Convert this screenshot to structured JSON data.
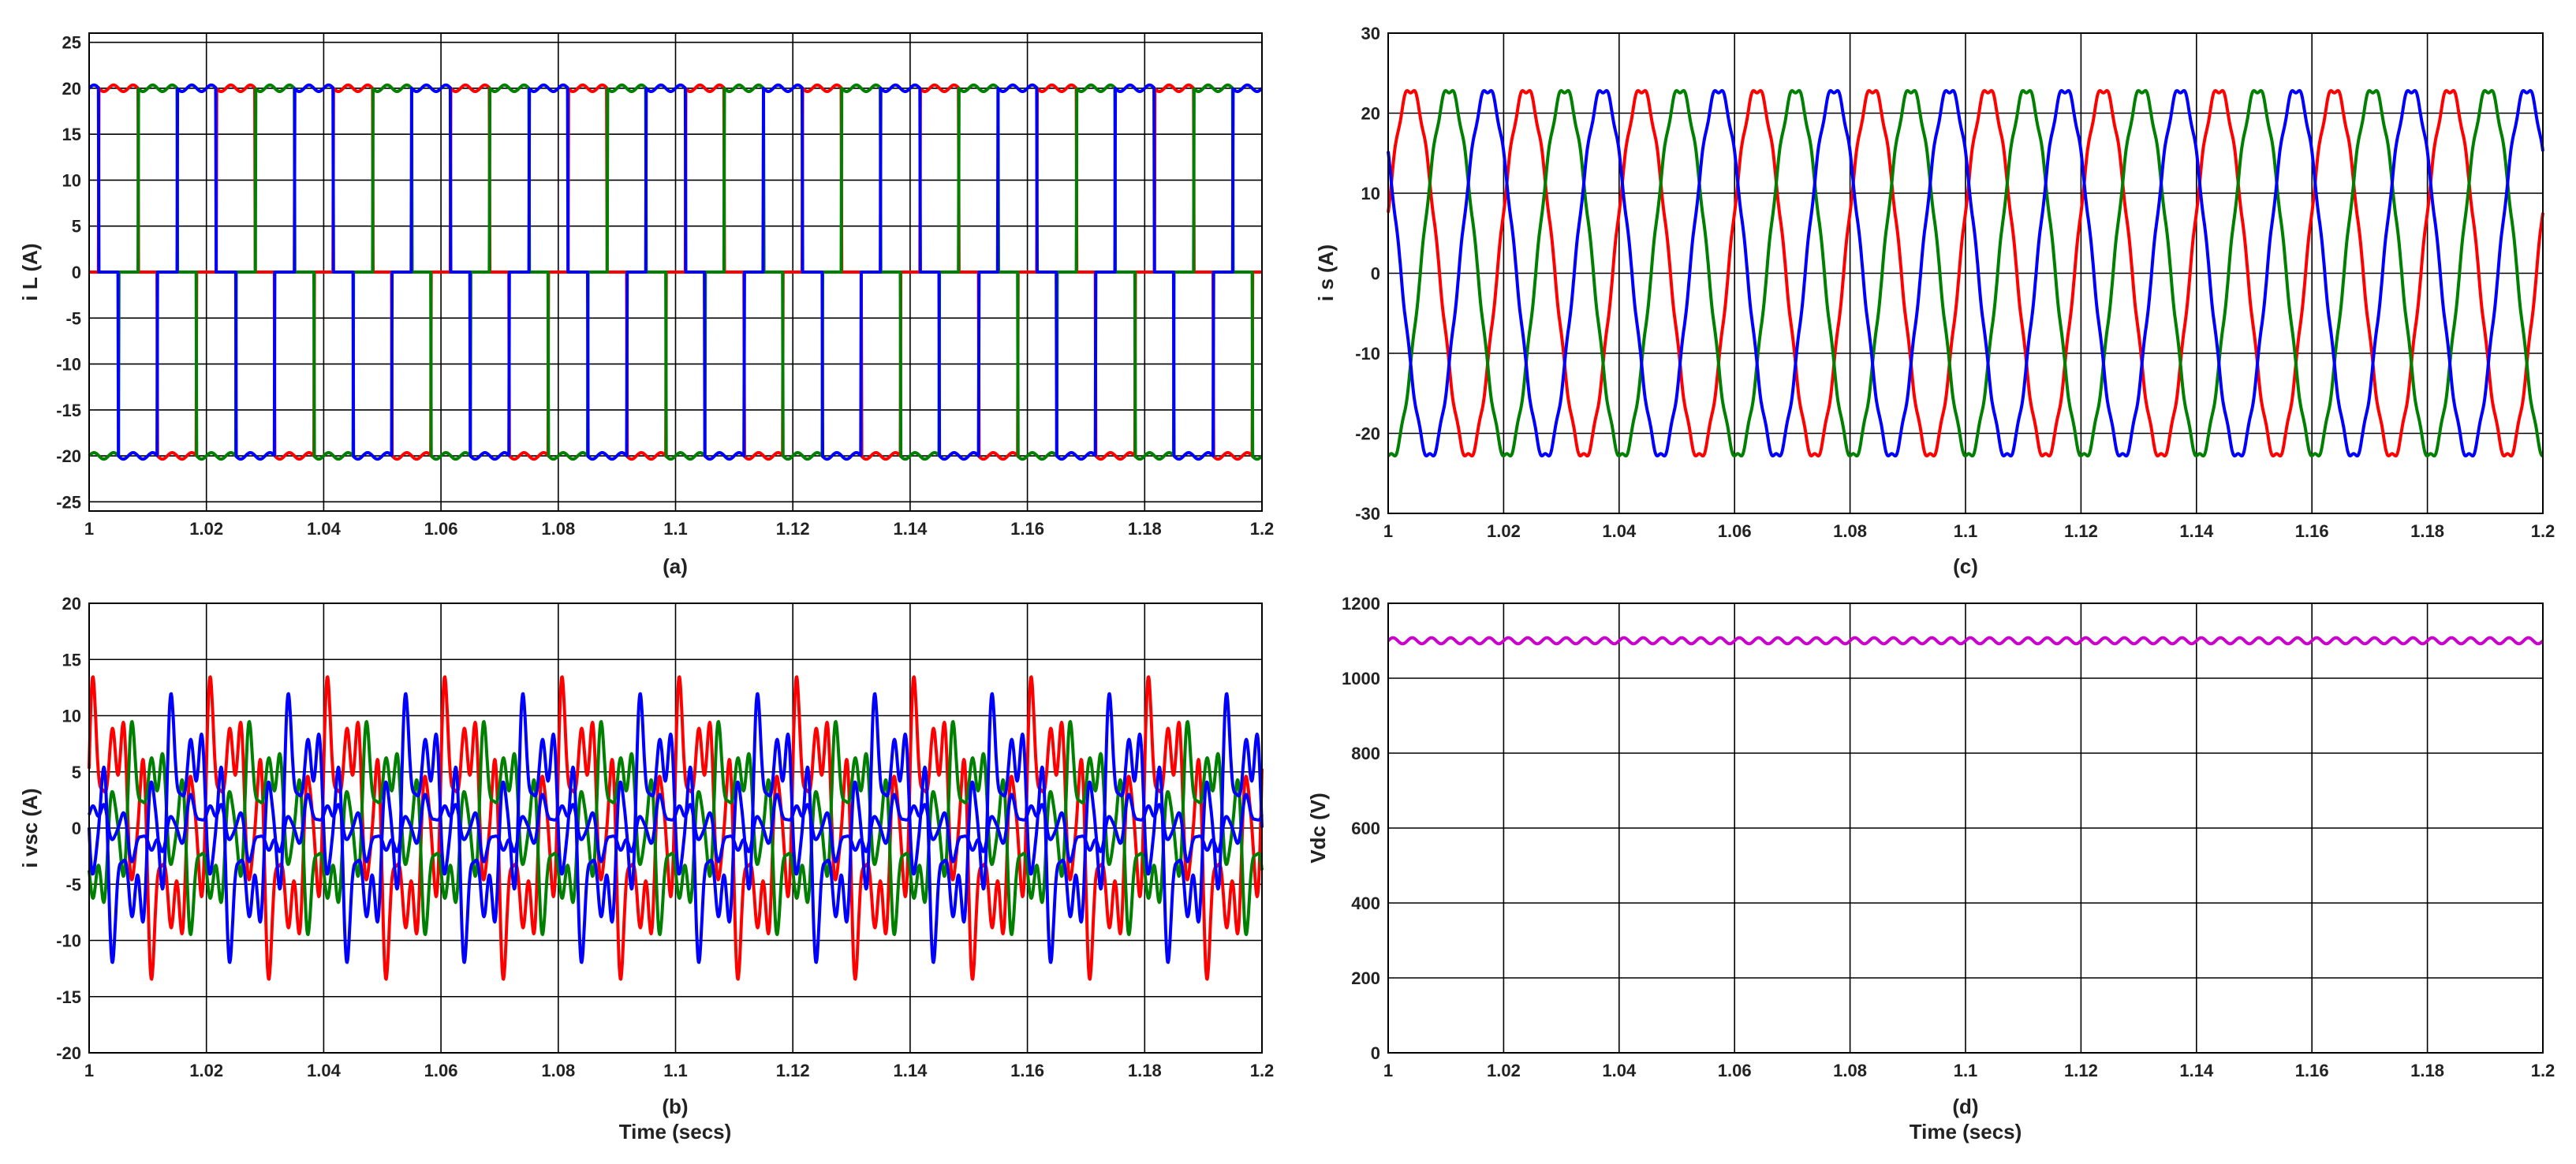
{
  "colors": {
    "phase_a": "#ff0000",
    "phase_b": "#008000",
    "phase_c": "#0000ff",
    "vdc": "#cc00cc"
  },
  "chart_data": [
    {
      "id": "a",
      "type": "line",
      "caption": "(a)",
      "ylabel": "i L (A)",
      "xlabel": "",
      "xlim": [
        1,
        1.2
      ],
      "ylim": [
        -26,
        26
      ],
      "grid": true,
      "x_ticks": [
        "1",
        "1.02",
        "1.04",
        "1.06",
        "1.08",
        "1.1",
        "1.12",
        "1.14",
        "1.16",
        "1.18",
        "1.2"
      ],
      "y_ticks": [
        "25",
        "20",
        "15",
        "10",
        "5",
        "0",
        "-5",
        "-10",
        "-15",
        "-20",
        "-25"
      ],
      "frequency_hz": 50,
      "waveform": "quasi-square",
      "series": [
        {
          "color": "#ff0000",
          "amplitude": 20,
          "phase_deg": 0
        },
        {
          "color": "#008000",
          "amplitude": 20,
          "phase_deg": -120
        },
        {
          "color": "#0000ff",
          "amplitude": 20,
          "phase_deg": 120
        }
      ]
    },
    {
      "id": "b",
      "type": "line",
      "caption": "(b)",
      "ylabel": "i vsc (A)",
      "xlabel": "Time (secs)",
      "xlim": [
        1,
        1.2
      ],
      "ylim": [
        -20,
        20
      ],
      "grid": true,
      "x_ticks": [
        "1",
        "1.02",
        "1.04",
        "1.06",
        "1.08",
        "1.1",
        "1.12",
        "1.14",
        "1.16",
        "1.18",
        "1.2"
      ],
      "y_ticks": [
        "20",
        "15",
        "10",
        "5",
        "0",
        "-5",
        "-10",
        "-15",
        "-20"
      ],
      "frequency_hz": 50,
      "waveform": "harmonic",
      "series": [
        {
          "color": "#ff0000",
          "amplitude": 13.5,
          "phase_deg": 0
        },
        {
          "color": "#008000",
          "amplitude": 9.5,
          "phase_deg": -120
        },
        {
          "color": "#0000ff",
          "amplitude": 12,
          "phase_deg": 120
        },
        {
          "color": "#0000ff",
          "amplitude": 3,
          "phase_deg": 60
        }
      ]
    },
    {
      "id": "c",
      "type": "line",
      "caption": "(c)",
      "ylabel": "i s (A)",
      "xlabel": "",
      "xlim": [
        1,
        1.2
      ],
      "ylim": [
        -30,
        30
      ],
      "grid": true,
      "x_ticks": [
        "1",
        "1.02",
        "1.04",
        "1.06",
        "1.08",
        "1.1",
        "1.12",
        "1.14",
        "1.16",
        "1.18",
        "1.2"
      ],
      "y_ticks": [
        "30",
        "20",
        "10",
        "0",
        "-10",
        "-20",
        "-30"
      ],
      "frequency_hz": 50,
      "waveform": "sine",
      "series": [
        {
          "color": "#ff0000",
          "amplitude": 23,
          "phase_deg": 20
        },
        {
          "color": "#008000",
          "amplitude": 23,
          "phase_deg": -100
        },
        {
          "color": "#0000ff",
          "amplitude": 23,
          "phase_deg": 140
        }
      ]
    },
    {
      "id": "d",
      "type": "line",
      "caption": "(d)",
      "ylabel": "Vdc (V)",
      "xlabel": "Time (secs)",
      "xlim": [
        1,
        1.2
      ],
      "ylim": [
        0,
        1200
      ],
      "grid": true,
      "x_ticks": [
        "1",
        "1.02",
        "1.04",
        "1.06",
        "1.08",
        "1.1",
        "1.12",
        "1.14",
        "1.16",
        "1.18",
        "1.2"
      ],
      "y_ticks": [
        "1200",
        "1000",
        "800",
        "600",
        "400",
        "200",
        "0"
      ],
      "frequency_hz": 300,
      "waveform": "dc-ripple",
      "series": [
        {
          "color": "#cc00cc",
          "mean": 1100,
          "ripple": 8
        }
      ]
    }
  ]
}
